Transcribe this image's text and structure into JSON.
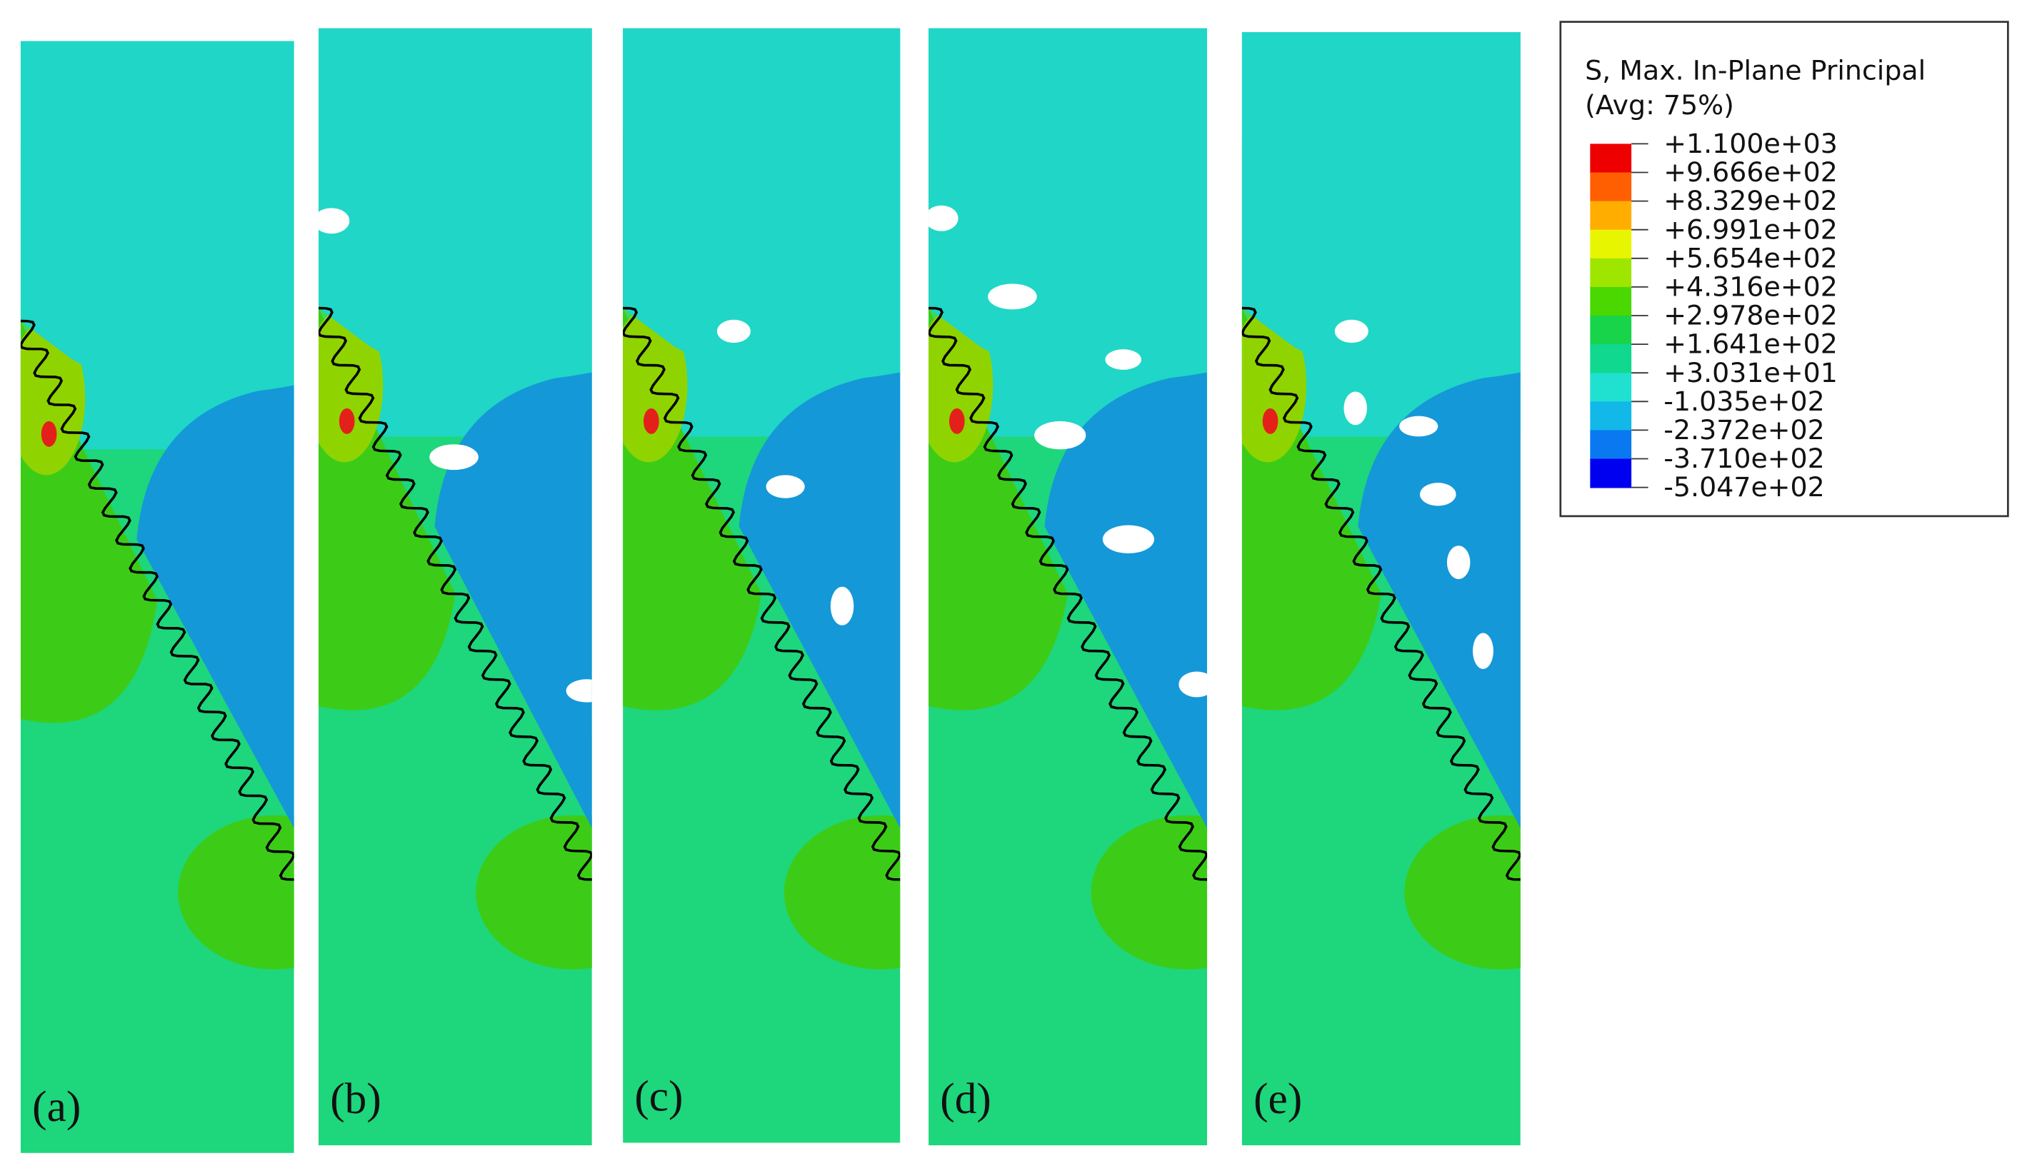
{
  "legend": {
    "title": "S, Max. In-Plane Principal",
    "subtitle": "(Avg: 75%)",
    "labels": [
      "+1.100e+03",
      "+9.666e+02",
      "+8.329e+02",
      "+6.991e+02",
      "+5.654e+02",
      "+4.316e+02",
      "+2.978e+02",
      "+1.641e+02",
      "+3.031e+01",
      "-1.035e+02",
      "-2.372e+02",
      "-3.710e+02",
      "-5.047e+02"
    ],
    "colors": [
      "#ee0000",
      "#ff5f00",
      "#ffae00",
      "#e8f500",
      "#9ee600",
      "#4ad800",
      "#18d44a",
      "#10d88e",
      "#20e0d0",
      "#12b8e8",
      "#0a78f0",
      "#0000f0"
    ]
  },
  "panels": [
    {
      "label": "(a)"
    },
    {
      "label": "(b)"
    },
    {
      "label": "(c)"
    },
    {
      "label": "(d)"
    },
    {
      "label": "(e)"
    }
  ]
}
